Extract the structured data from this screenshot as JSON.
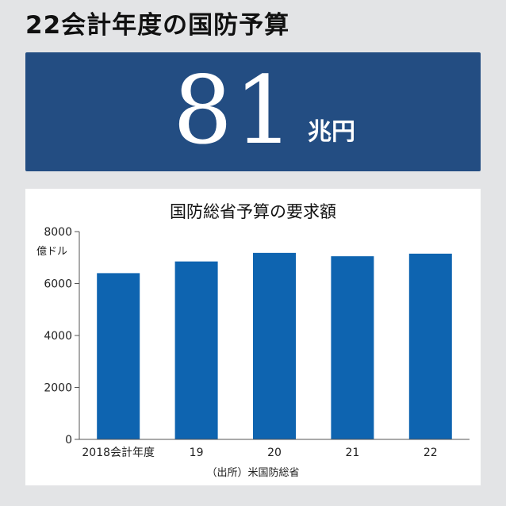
{
  "headline": "22会計年度の国防予算",
  "banner": {
    "value": "81",
    "unit": "兆円",
    "background_color": "#234d82"
  },
  "chart_data": {
    "type": "bar",
    "title": "国防総省予算の要求額",
    "ylabel": "億ドル",
    "categories": [
      "2018会計年度",
      "19",
      "20",
      "21",
      "22"
    ],
    "values": [
      6400,
      6850,
      7180,
      7050,
      7150
    ],
    "ylim": [
      0,
      8000
    ],
    "yticks": [
      0,
      2000,
      4000,
      6000,
      8000
    ],
    "bar_color": "#0e64b0",
    "grid": false,
    "source": "（出所）米国防総省"
  }
}
